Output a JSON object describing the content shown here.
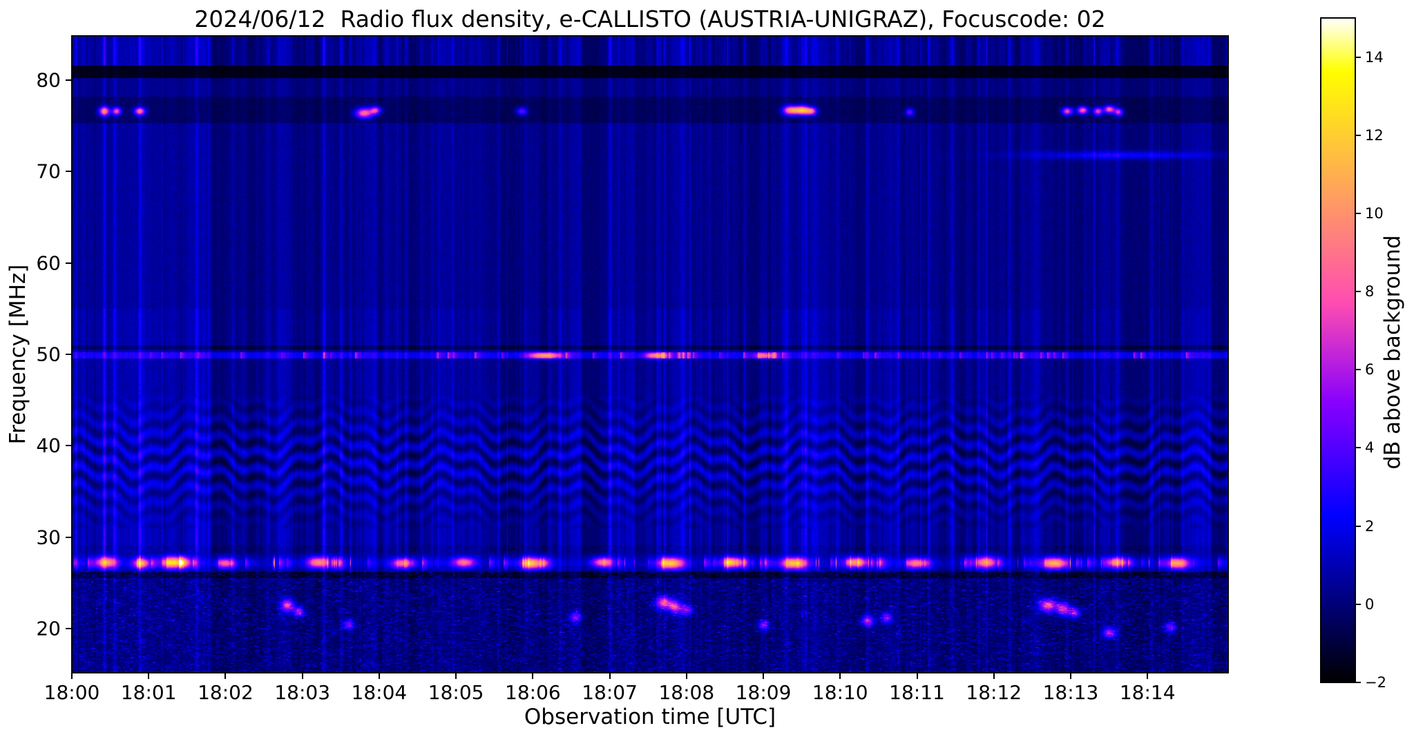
{
  "chart_data": {
    "type": "heatmap",
    "title": "2024/06/12  Radio flux density, e-CALLISTO (AUSTRIA-UNIGRAZ), Focuscode: 02",
    "xlabel": "Observation time [UTC]",
    "ylabel": "Frequency [MHz]",
    "x_ticks": [
      {
        "minute": 0,
        "label": "18:00"
      },
      {
        "minute": 1,
        "label": "18:01"
      },
      {
        "minute": 2,
        "label": "18:02"
      },
      {
        "minute": 3,
        "label": "18:03"
      },
      {
        "minute": 4,
        "label": "18:04"
      },
      {
        "minute": 5,
        "label": "18:05"
      },
      {
        "minute": 6,
        "label": "18:06"
      },
      {
        "minute": 7,
        "label": "18:07"
      },
      {
        "minute": 8,
        "label": "18:08"
      },
      {
        "minute": 9,
        "label": "18:09"
      },
      {
        "minute": 10,
        "label": "18:10"
      },
      {
        "minute": 11,
        "label": "18:11"
      },
      {
        "minute": 12,
        "label": "18:12"
      },
      {
        "minute": 13,
        "label": "18:13"
      },
      {
        "minute": 14,
        "label": "18:14"
      }
    ],
    "x_minutes_span": 15.05,
    "y_ticks_mhz": [
      20,
      30,
      40,
      50,
      60,
      70,
      80
    ],
    "y_range_mhz": [
      15.2,
      84.8
    ],
    "grid": false,
    "colorbar": {
      "label": "dB above background",
      "ticks": [
        -2,
        0,
        2,
        4,
        6,
        8,
        10,
        12,
        14
      ],
      "tick_labels": [
        "−2",
        "0",
        "2",
        "4",
        "6",
        "8",
        "10",
        "12",
        "14"
      ],
      "vmin": -2,
      "vmax": 15,
      "colormap": "gnuplot2"
    },
    "features": {
      "description": "Solar radio spectrogram: dark-blue noise background with dense vertical RFI striations; wavy interference fringes between ~32 and 45 MHz; bright intermittent orange/pink RFI band near 27 MHz; speckled noisy region below 26 MHz with sporadic orange blobs; narrowband orange bursts near 76.6 MHz; enhanced emission line near 49.9 MHz; dark absorbed band at 80.2-81.6 MHz",
      "speckle_max_f": 26.3,
      "dark_band": {
        "f_lo": 80.2,
        "f_hi": 81.6
      },
      "band27": {
        "center": 27.25,
        "sigma": 0.45
      },
      "line50": {
        "f": 49.9,
        "boost": 2.0
      },
      "wavy": {
        "f_lo": 31,
        "f_hi": 45.5,
        "center": 38.3,
        "spacing": 1.9,
        "amp": 1.1,
        "period": 1.6
      },
      "rfi_columns": [
        [
          0.05,
          1.8
        ],
        [
          0.42,
          2.6
        ],
        [
          0.55,
          1.5
        ],
        [
          0.88,
          2.4
        ],
        [
          1.62,
          2.6
        ],
        [
          1.78,
          1.2
        ],
        [
          2.1,
          0.9
        ],
        [
          2.55,
          0.9
        ],
        [
          3.28,
          2.4
        ],
        [
          3.5,
          1.4
        ],
        [
          3.62,
          1.2
        ],
        [
          4.35,
          1.3
        ],
        [
          4.55,
          1.1
        ],
        [
          4.95,
          1.2
        ],
        [
          5.3,
          0.9
        ],
        [
          5.55,
          1.1
        ],
        [
          5.9,
          1.3
        ],
        [
          6.35,
          1.2
        ],
        [
          6.6,
          0.9
        ],
        [
          7.0,
          2.2
        ],
        [
          7.3,
          1.1
        ],
        [
          7.62,
          1.3
        ],
        [
          7.95,
          1.1
        ],
        [
          8.3,
          1.2
        ],
        [
          8.75,
          1.3
        ],
        [
          9.3,
          1.2
        ],
        [
          9.55,
          1.4
        ],
        [
          9.95,
          1.1
        ],
        [
          10.35,
          1.3
        ],
        [
          10.75,
          1.1
        ],
        [
          11.15,
          1.3
        ],
        [
          11.45,
          1.1
        ],
        [
          11.8,
          1.2
        ],
        [
          12.2,
          1.3
        ],
        [
          12.55,
          1.1
        ],
        [
          12.95,
          1.3
        ],
        [
          13.3,
          1.2
        ],
        [
          13.6,
          1.4
        ],
        [
          14.05,
          1.2
        ],
        [
          14.45,
          1.3
        ],
        [
          14.8,
          1.5
        ]
      ],
      "blobs": [
        [
          0.42,
          76.6,
          10,
          0.05,
          0.35
        ],
        [
          0.58,
          76.6,
          8,
          0.04,
          0.3
        ],
        [
          0.88,
          76.6,
          9,
          0.05,
          0.3
        ],
        [
          3.8,
          76.4,
          9,
          0.08,
          0.4
        ],
        [
          3.95,
          76.7,
          7,
          0.05,
          0.3
        ],
        [
          5.85,
          76.6,
          5,
          0.05,
          0.3
        ],
        [
          9.35,
          76.7,
          10,
          0.07,
          0.35
        ],
        [
          9.5,
          76.7,
          11,
          0.07,
          0.35
        ],
        [
          9.62,
          76.6,
          8,
          0.05,
          0.3
        ],
        [
          10.9,
          76.5,
          5,
          0.04,
          0.3
        ],
        [
          12.95,
          76.6,
          8,
          0.05,
          0.3
        ],
        [
          13.15,
          76.7,
          9,
          0.05,
          0.3
        ],
        [
          13.35,
          76.6,
          8,
          0.04,
          0.3
        ],
        [
          13.5,
          76.8,
          9,
          0.05,
          0.3
        ],
        [
          13.62,
          76.5,
          7,
          0.04,
          0.3
        ],
        [
          13.6,
          71.8,
          2.5,
          0.8,
          0.3
        ],
        [
          2.8,
          22.6,
          7,
          0.06,
          0.5
        ],
        [
          2.95,
          21.9,
          6,
          0.05,
          0.4
        ],
        [
          3.6,
          20.5,
          5,
          0.05,
          0.4
        ],
        [
          6.55,
          21.3,
          5,
          0.05,
          0.4
        ],
        [
          7.7,
          22.9,
          8,
          0.07,
          0.5
        ],
        [
          7.85,
          22.4,
          7,
          0.06,
          0.5
        ],
        [
          8.0,
          22.1,
          5,
          0.05,
          0.4
        ],
        [
          9.0,
          20.4,
          5,
          0.05,
          0.4
        ],
        [
          10.35,
          20.9,
          6,
          0.06,
          0.4
        ],
        [
          10.6,
          21.2,
          5,
          0.05,
          0.4
        ],
        [
          12.7,
          22.6,
          8,
          0.08,
          0.5
        ],
        [
          12.9,
          22.2,
          7,
          0.06,
          0.5
        ],
        [
          13.05,
          21.8,
          6,
          0.05,
          0.4
        ],
        [
          13.5,
          19.6,
          6,
          0.06,
          0.4
        ],
        [
          14.3,
          20.2,
          5,
          0.05,
          0.4
        ],
        [
          0.45,
          27.3,
          9,
          0.1,
          0.45
        ],
        [
          0.9,
          27.2,
          8,
          0.08,
          0.4
        ],
        [
          1.35,
          27.3,
          10,
          0.12,
          0.45
        ],
        [
          2.0,
          27.2,
          7,
          0.08,
          0.4
        ],
        [
          3.2,
          27.3,
          9,
          0.1,
          0.45
        ],
        [
          4.3,
          27.2,
          8,
          0.1,
          0.4
        ],
        [
          5.1,
          27.3,
          8,
          0.1,
          0.4
        ],
        [
          6.0,
          27.2,
          9,
          0.12,
          0.45
        ],
        [
          6.9,
          27.3,
          8,
          0.1,
          0.4
        ],
        [
          7.8,
          27.2,
          10,
          0.12,
          0.45
        ],
        [
          8.6,
          27.3,
          8,
          0.1,
          0.4
        ],
        [
          9.4,
          27.2,
          10,
          0.12,
          0.45
        ],
        [
          10.2,
          27.3,
          9,
          0.1,
          0.4
        ],
        [
          11.0,
          27.2,
          8,
          0.1,
          0.4
        ],
        [
          11.9,
          27.3,
          9,
          0.1,
          0.45
        ],
        [
          12.8,
          27.2,
          10,
          0.12,
          0.45
        ],
        [
          13.6,
          27.3,
          8,
          0.1,
          0.4
        ],
        [
          14.4,
          27.2,
          9,
          0.1,
          0.45
        ],
        [
          6.15,
          49.9,
          9,
          0.15,
          0.25
        ],
        [
          7.6,
          49.9,
          8,
          0.1,
          0.25
        ],
        [
          9.0,
          49.9,
          6,
          0.1,
          0.25
        ]
      ]
    }
  }
}
